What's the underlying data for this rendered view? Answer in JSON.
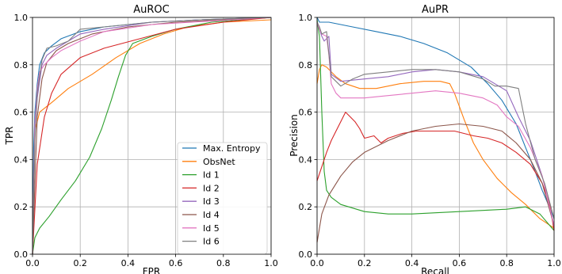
{
  "chart_data": [
    {
      "type": "line",
      "title": "AuROC",
      "xlabel": "FPR",
      "ylabel": "TPR",
      "xlim": [
        0.0,
        1.0
      ],
      "ylim": [
        0.0,
        1.0
      ],
      "xticks": [
        "0.0",
        "0.2",
        "0.4",
        "0.6",
        "0.8",
        "1.0"
      ],
      "yticks": [
        "0.0",
        "0.2",
        "0.4",
        "0.6",
        "0.8",
        "1.0"
      ],
      "grid": true,
      "legend": "bottom-right",
      "series": [
        {
          "name": "Max. Entropy",
          "color": "#1f77b4",
          "points": [
            [
              0,
              0
            ],
            [
              0.005,
              0.45
            ],
            [
              0.01,
              0.6
            ],
            [
              0.02,
              0.72
            ],
            [
              0.03,
              0.8
            ],
            [
              0.05,
              0.85
            ],
            [
              0.08,
              0.88
            ],
            [
              0.12,
              0.91
            ],
            [
              0.2,
              0.94
            ],
            [
              0.3,
              0.96
            ],
            [
              0.5,
              0.98
            ],
            [
              0.7,
              0.99
            ],
            [
              1,
              1
            ]
          ]
        },
        {
          "name": "ObsNet",
          "color": "#ff7f0e",
          "points": [
            [
              0,
              0
            ],
            [
              0.01,
              0.52
            ],
            [
              0.03,
              0.6
            ],
            [
              0.08,
              0.64
            ],
            [
              0.15,
              0.7
            ],
            [
              0.25,
              0.76
            ],
            [
              0.35,
              0.83
            ],
            [
              0.45,
              0.89
            ],
            [
              0.55,
              0.93
            ],
            [
              0.65,
              0.96
            ],
            [
              0.8,
              0.98
            ],
            [
              1,
              0.99
            ]
          ]
        },
        {
          "name": "Id 1",
          "color": "#2ca02c",
          "points": [
            [
              0,
              0
            ],
            [
              0.01,
              0.07
            ],
            [
              0.03,
              0.11
            ],
            [
              0.07,
              0.16
            ],
            [
              0.12,
              0.23
            ],
            [
              0.18,
              0.31
            ],
            [
              0.24,
              0.41
            ],
            [
              0.29,
              0.53
            ],
            [
              0.33,
              0.65
            ],
            [
              0.36,
              0.75
            ],
            [
              0.39,
              0.84
            ],
            [
              0.42,
              0.89
            ],
            [
              0.5,
              0.92
            ],
            [
              0.6,
              0.95
            ],
            [
              0.75,
              0.98
            ],
            [
              1,
              1
            ]
          ]
        },
        {
          "name": "Id 2",
          "color": "#d62728",
          "points": [
            [
              0,
              0
            ],
            [
              0.02,
              0.38
            ],
            [
              0.05,
              0.58
            ],
            [
              0.08,
              0.68
            ],
            [
              0.12,
              0.76
            ],
            [
              0.2,
              0.83
            ],
            [
              0.3,
              0.87
            ],
            [
              0.45,
              0.91
            ],
            [
              0.6,
              0.95
            ],
            [
              0.8,
              0.98
            ],
            [
              1,
              1
            ]
          ]
        },
        {
          "name": "Id 3",
          "color": "#9467bd",
          "points": [
            [
              0,
              0
            ],
            [
              0.01,
              0.5
            ],
            [
              0.02,
              0.66
            ],
            [
              0.04,
              0.8
            ],
            [
              0.06,
              0.84
            ],
            [
              0.1,
              0.87
            ],
            [
              0.15,
              0.9
            ],
            [
              0.2,
              0.93
            ],
            [
              0.3,
              0.95
            ],
            [
              0.5,
              0.98
            ],
            [
              0.7,
              0.99
            ],
            [
              1,
              1
            ]
          ]
        },
        {
          "name": "Id 4",
          "color": "#8c564b",
          "points": [
            [
              0,
              0
            ],
            [
              0.01,
              0.3
            ],
            [
              0.02,
              0.58
            ],
            [
              0.04,
              0.74
            ],
            [
              0.06,
              0.81
            ],
            [
              0.1,
              0.86
            ],
            [
              0.15,
              0.89
            ],
            [
              0.25,
              0.93
            ],
            [
              0.4,
              0.96
            ],
            [
              0.6,
              0.98
            ],
            [
              1,
              1
            ]
          ]
        },
        {
          "name": "Id 5",
          "color": "#e377c2",
          "points": [
            [
              0,
              0
            ],
            [
              0.01,
              0.55
            ],
            [
              0.02,
              0.7
            ],
            [
              0.03,
              0.77
            ],
            [
              0.05,
              0.8
            ],
            [
              0.08,
              0.83
            ],
            [
              0.12,
              0.86
            ],
            [
              0.2,
              0.9
            ],
            [
              0.3,
              0.94
            ],
            [
              0.5,
              0.97
            ],
            [
              1,
              1
            ]
          ]
        },
        {
          "name": "Id 6",
          "color": "#7f7f7f",
          "points": [
            [
              0,
              0
            ],
            [
              0.01,
              0.48
            ],
            [
              0.02,
              0.68
            ],
            [
              0.04,
              0.82
            ],
            [
              0.06,
              0.87
            ],
            [
              0.1,
              0.88
            ],
            [
              0.15,
              0.9
            ],
            [
              0.2,
              0.95
            ],
            [
              0.3,
              0.96
            ],
            [
              0.5,
              0.98
            ],
            [
              0.7,
              0.99
            ],
            [
              1,
              1
            ]
          ]
        }
      ]
    },
    {
      "type": "line",
      "title": "AuPR",
      "xlabel": "Recall",
      "ylabel": "Precision",
      "xlim": [
        0.0,
        1.0
      ],
      "ylim": [
        0.0,
        1.0
      ],
      "xticks": [
        "0.0",
        "0.2",
        "0.4",
        "0.6",
        "0.8",
        "1.0"
      ],
      "yticks": [
        "0.0",
        "0.2",
        "0.4",
        "0.6",
        "0.8",
        "1.0"
      ],
      "grid": true,
      "series": [
        {
          "name": "Max. Entropy",
          "color": "#1f77b4",
          "points": [
            [
              0,
              1
            ],
            [
              0.01,
              0.98
            ],
            [
              0.05,
              0.98
            ],
            [
              0.15,
              0.96
            ],
            [
              0.25,
              0.94
            ],
            [
              0.35,
              0.92
            ],
            [
              0.45,
              0.89
            ],
            [
              0.55,
              0.85
            ],
            [
              0.65,
              0.79
            ],
            [
              0.72,
              0.72
            ],
            [
              0.78,
              0.65
            ],
            [
              0.84,
              0.55
            ],
            [
              0.88,
              0.45
            ],
            [
              0.92,
              0.35
            ],
            [
              0.95,
              0.27
            ],
            [
              0.98,
              0.2
            ],
            [
              1,
              0.15
            ]
          ]
        },
        {
          "name": "ObsNet",
          "color": "#ff7f0e",
          "points": [
            [
              0,
              0.72
            ],
            [
              0.01,
              0.78
            ],
            [
              0.02,
              0.8
            ],
            [
              0.04,
              0.79
            ],
            [
              0.08,
              0.75
            ],
            [
              0.12,
              0.72
            ],
            [
              0.18,
              0.7
            ],
            [
              0.25,
              0.7
            ],
            [
              0.35,
              0.72
            ],
            [
              0.45,
              0.73
            ],
            [
              0.52,
              0.73
            ],
            [
              0.56,
              0.72
            ],
            [
              0.58,
              0.68
            ],
            [
              0.62,
              0.57
            ],
            [
              0.66,
              0.47
            ],
            [
              0.7,
              0.4
            ],
            [
              0.76,
              0.32
            ],
            [
              0.82,
              0.26
            ],
            [
              0.88,
              0.21
            ],
            [
              0.94,
              0.15
            ],
            [
              1,
              0.11
            ]
          ]
        },
        {
          "name": "Id 1",
          "color": "#2ca02c",
          "points": [
            [
              0,
              0.99
            ],
            [
              0.01,
              0.92
            ],
            [
              0.02,
              0.6
            ],
            [
              0.03,
              0.35
            ],
            [
              0.04,
              0.27
            ],
            [
              0.06,
              0.24
            ],
            [
              0.1,
              0.21
            ],
            [
              0.2,
              0.18
            ],
            [
              0.3,
              0.17
            ],
            [
              0.4,
              0.17
            ],
            [
              0.5,
              0.175
            ],
            [
              0.6,
              0.18
            ],
            [
              0.7,
              0.185
            ],
            [
              0.8,
              0.19
            ],
            [
              0.88,
              0.2
            ],
            [
              0.94,
              0.17
            ],
            [
              1,
              0.1
            ]
          ]
        },
        {
          "name": "Id 2",
          "color": "#d62728",
          "points": [
            [
              0,
              0.31
            ],
            [
              0.02,
              0.37
            ],
            [
              0.04,
              0.43
            ],
            [
              0.06,
              0.48
            ],
            [
              0.08,
              0.52
            ],
            [
              0.1,
              0.56
            ],
            [
              0.12,
              0.6
            ],
            [
              0.14,
              0.58
            ],
            [
              0.16,
              0.56
            ],
            [
              0.18,
              0.53
            ],
            [
              0.2,
              0.49
            ],
            [
              0.24,
              0.5
            ],
            [
              0.27,
              0.47
            ],
            [
              0.3,
              0.49
            ],
            [
              0.36,
              0.51
            ],
            [
              0.42,
              0.52
            ],
            [
              0.5,
              0.52
            ],
            [
              0.58,
              0.52
            ],
            [
              0.66,
              0.5
            ],
            [
              0.72,
              0.49
            ],
            [
              0.78,
              0.47
            ],
            [
              0.84,
              0.43
            ],
            [
              0.9,
              0.38
            ],
            [
              0.95,
              0.3
            ],
            [
              0.98,
              0.22
            ],
            [
              1,
              0.1
            ]
          ]
        },
        {
          "name": "Id 3",
          "color": "#9467bd",
          "points": [
            [
              0,
              0.98
            ],
            [
              0.01,
              0.95
            ],
            [
              0.02,
              0.92
            ],
            [
              0.03,
              0.9
            ],
            [
              0.05,
              0.92
            ],
            [
              0.06,
              0.76
            ],
            [
              0.1,
              0.73
            ],
            [
              0.2,
              0.74
            ],
            [
              0.3,
              0.75
            ],
            [
              0.4,
              0.77
            ],
            [
              0.5,
              0.78
            ],
            [
              0.6,
              0.77
            ],
            [
              0.7,
              0.75
            ],
            [
              0.8,
              0.69
            ],
            [
              0.85,
              0.58
            ],
            [
              0.9,
              0.48
            ],
            [
              0.95,
              0.33
            ],
            [
              1,
              0.12
            ]
          ]
        },
        {
          "name": "Id 4",
          "color": "#8c564b",
          "points": [
            [
              0,
              0.05
            ],
            [
              0.02,
              0.17
            ],
            [
              0.05,
              0.25
            ],
            [
              0.1,
              0.33
            ],
            [
              0.15,
              0.39
            ],
            [
              0.2,
              0.43
            ],
            [
              0.3,
              0.48
            ],
            [
              0.4,
              0.52
            ],
            [
              0.5,
              0.54
            ],
            [
              0.6,
              0.55
            ],
            [
              0.7,
              0.54
            ],
            [
              0.78,
              0.52
            ],
            [
              0.84,
              0.47
            ],
            [
              0.9,
              0.4
            ],
            [
              0.95,
              0.3
            ],
            [
              1,
              0.12
            ]
          ]
        },
        {
          "name": "Id 5",
          "color": "#e377c2",
          "points": [
            [
              0,
              0.98
            ],
            [
              0.01,
              0.95
            ],
            [
              0.02,
              0.93
            ],
            [
              0.04,
              0.92
            ],
            [
              0.05,
              0.84
            ],
            [
              0.06,
              0.72
            ],
            [
              0.08,
              0.68
            ],
            [
              0.1,
              0.66
            ],
            [
              0.15,
              0.66
            ],
            [
              0.2,
              0.66
            ],
            [
              0.3,
              0.67
            ],
            [
              0.4,
              0.68
            ],
            [
              0.5,
              0.69
            ],
            [
              0.6,
              0.68
            ],
            [
              0.7,
              0.66
            ],
            [
              0.76,
              0.63
            ],
            [
              0.8,
              0.58
            ],
            [
              0.85,
              0.54
            ],
            [
              0.9,
              0.45
            ],
            [
              0.95,
              0.33
            ],
            [
              1,
              0.12
            ]
          ]
        },
        {
          "name": "Id 6",
          "color": "#7f7f7f",
          "points": [
            [
              0,
              0.98
            ],
            [
              0.01,
              0.96
            ],
            [
              0.02,
              0.93
            ],
            [
              0.04,
              0.94
            ],
            [
              0.06,
              0.75
            ],
            [
              0.1,
              0.71
            ],
            [
              0.15,
              0.74
            ],
            [
              0.2,
              0.76
            ],
            [
              0.3,
              0.77
            ],
            [
              0.4,
              0.78
            ],
            [
              0.5,
              0.78
            ],
            [
              0.6,
              0.77
            ],
            [
              0.7,
              0.74
            ],
            [
              0.75,
              0.71
            ],
            [
              0.8,
              0.71
            ],
            [
              0.85,
              0.7
            ],
            [
              0.88,
              0.55
            ],
            [
              0.92,
              0.4
            ],
            [
              0.96,
              0.3
            ],
            [
              1,
              0.15
            ]
          ]
        }
      ]
    }
  ]
}
